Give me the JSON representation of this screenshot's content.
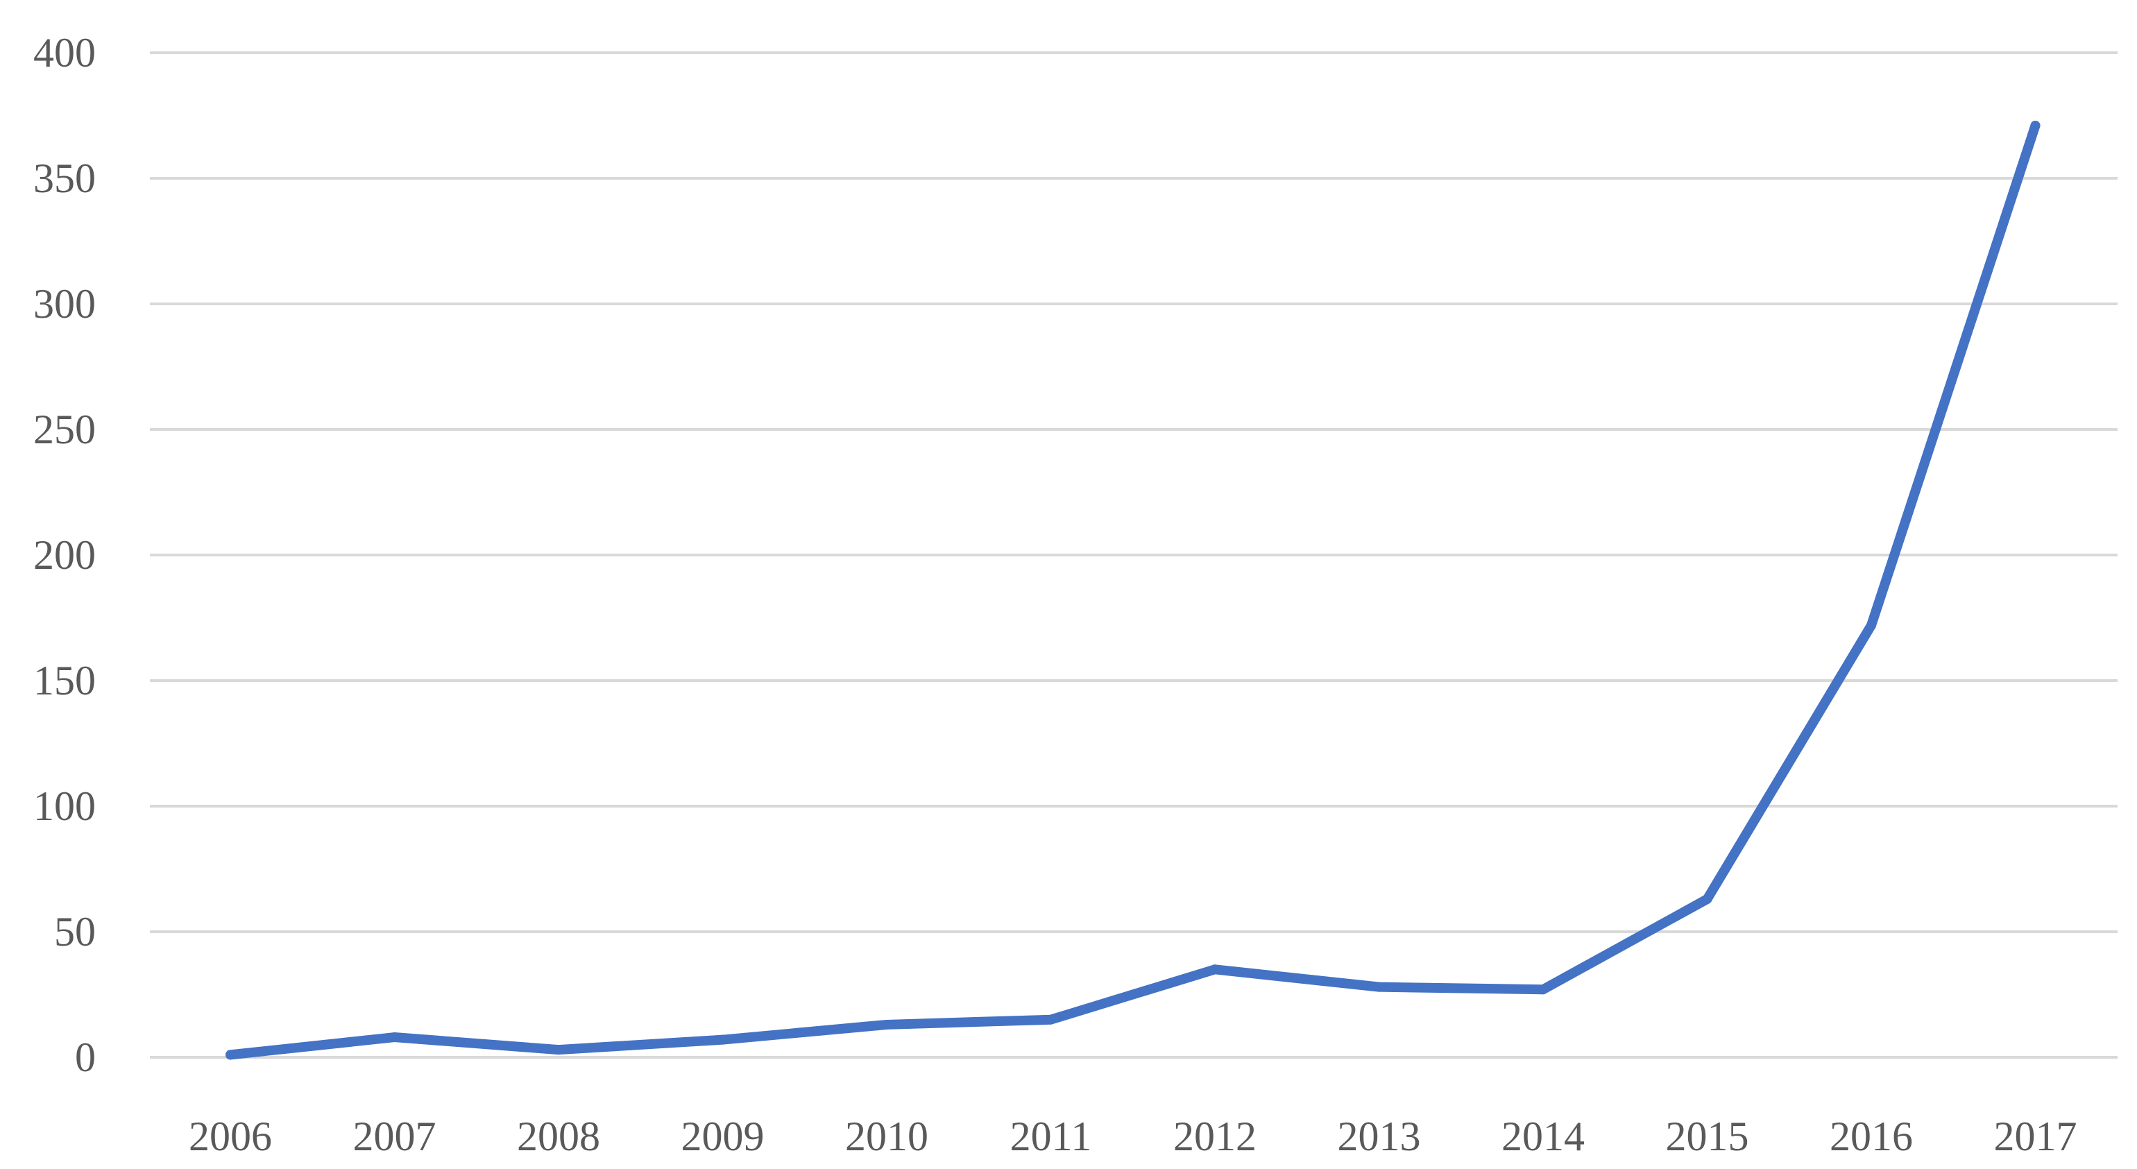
{
  "chart_data": {
    "type": "line",
    "title": "",
    "xlabel": "",
    "ylabel": "",
    "categories": [
      "2006",
      "2007",
      "2008",
      "2009",
      "2010",
      "2011",
      "2012",
      "2013",
      "2014",
      "2015",
      "2016",
      "2017"
    ],
    "series": [
      {
        "color": "#4472C4",
        "values": [
          1,
          8,
          3,
          7,
          13,
          15,
          35,
          28,
          27,
          63,
          172,
          371
        ]
      }
    ],
    "ylim": [
      0,
      400
    ],
    "yticks": [
      "0",
      "50",
      "100",
      "150",
      "200",
      "250",
      "300",
      "350",
      "400"
    ],
    "grid": true,
    "legend": "none"
  }
}
